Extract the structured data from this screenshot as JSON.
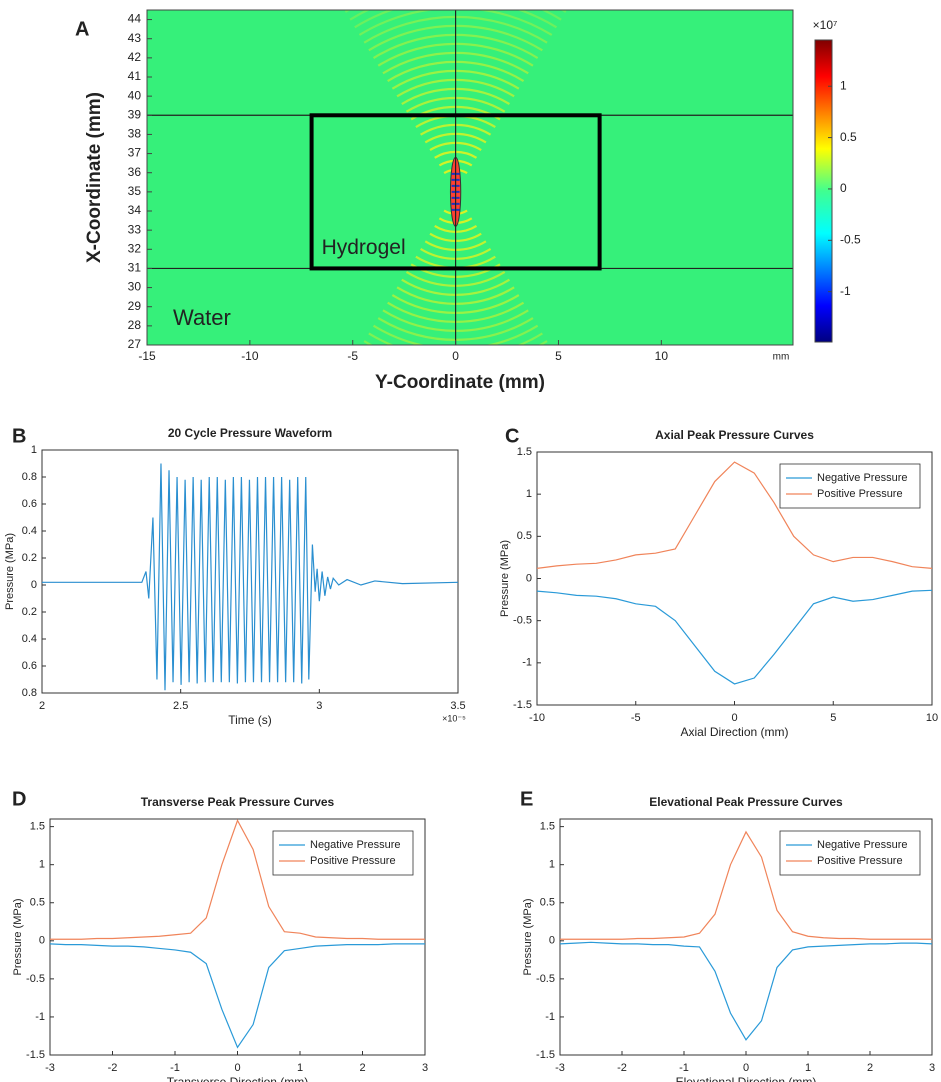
{
  "chart_data": [
    {
      "type": "field",
      "panel": "A",
      "xlabel": "Y-Coordinate (mm)",
      "ylabel": "X-Coordinate (mm)",
      "x_unit": "mm",
      "xlim": [
        -15,
        16.4
      ],
      "ylim": [
        27,
        44.5
      ],
      "xticks": [
        -15,
        -10,
        -5,
        0,
        5,
        10
      ],
      "yticks": [
        27,
        28,
        29,
        30,
        31,
        32,
        33,
        34,
        35,
        36,
        37,
        38,
        39,
        40,
        41,
        42,
        43,
        44
      ],
      "background": "#36f07a",
      "lines": {
        "y": [
          31,
          39
        ],
        "x": [
          0
        ]
      },
      "regions": [
        {
          "name": "Hydrogel",
          "x": [
            -7,
            7
          ],
          "y": [
            31,
            39
          ]
        }
      ],
      "focus": {
        "x": 0,
        "y": 35,
        "rx": 0.25,
        "ry": 1.8
      },
      "annotations": [
        "Water"
      ],
      "colorbar": {
        "label": "×10⁷",
        "clim": [
          -1.49,
          1.45
        ],
        "ticks": [
          -1,
          -0.5,
          0,
          0.5,
          1
        ]
      }
    },
    {
      "type": "line",
      "panel": "B",
      "title": "20 Cycle Pressure Waveform",
      "xlabel": "Time (s)",
      "ylabel": "Pressure (MPa)",
      "x_exponent": "×10⁻⁵",
      "xlim": [
        2,
        3.5
      ],
      "ylim": [
        -0.8,
        1
      ],
      "xticks": [
        2,
        2.5,
        3,
        3.5
      ],
      "yticks": [
        {
          "value": -0.8,
          "label": "0.8"
        },
        {
          "value": -0.6,
          "label": "0.6"
        },
        {
          "value": -0.4,
          "label": "0.4"
        },
        {
          "value": -0.2,
          "label": "0.2"
        },
        0,
        0.2,
        0.4,
        0.6,
        0.8,
        1
      ],
      "color": "#2a8fd0",
      "x": [
        2,
        2.36,
        2.375,
        2.385,
        2.4,
        2.4145,
        2.429,
        2.4435,
        2.458,
        2.4725,
        2.487,
        2.5015,
        2.516,
        2.5305,
        2.545,
        2.5595,
        2.574,
        2.5885,
        2.603,
        2.6175,
        2.632,
        2.6465,
        2.661,
        2.6755,
        2.69,
        2.7045,
        2.719,
        2.7335,
        2.748,
        2.7625,
        2.777,
        2.7915,
        2.806,
        2.8205,
        2.835,
        2.8495,
        2.864,
        2.8785,
        2.893,
        2.9075,
        2.922,
        2.9365,
        2.951,
        2.962,
        2.975,
        2.985,
        2.992,
        3.0,
        3.01,
        3.02,
        3.03,
        3.04,
        3.05,
        3.07,
        3.1,
        3.15,
        3.2,
        3.3,
        3.5
      ],
      "values": [
        0.02,
        0.02,
        0.1,
        -0.1,
        0.5,
        -0.7,
        0.9,
        -0.78,
        0.85,
        -0.72,
        0.8,
        -0.74,
        0.78,
        -0.72,
        0.8,
        -0.73,
        0.78,
        -0.72,
        0.8,
        -0.72,
        0.8,
        -0.72,
        0.78,
        -0.72,
        0.8,
        -0.73,
        0.8,
        -0.72,
        0.78,
        -0.72,
        0.8,
        -0.72,
        0.8,
        -0.72,
        0.8,
        -0.72,
        0.8,
        -0.72,
        0.78,
        -0.72,
        0.8,
        -0.73,
        0.8,
        -0.7,
        0.3,
        -0.05,
        0.12,
        -0.12,
        0.1,
        -0.08,
        0.06,
        -0.03,
        0.05,
        0,
        0.04,
        0,
        0.03,
        0.01,
        0.02
      ]
    },
    {
      "type": "line",
      "panel": "C",
      "title": "Axial Peak Pressure Curves",
      "xlabel": "Axial Direction (mm)",
      "ylabel": "Pressure (MPa)",
      "legend": "upper right",
      "xlim": [
        -10,
        10
      ],
      "ylim": [
        -1.5,
        1.5
      ],
      "xticks": [
        -10,
        -5,
        0,
        5,
        10
      ],
      "yticks": [
        -1.5,
        -1,
        -0.5,
        0,
        0.5,
        1,
        1.5
      ],
      "x": [
        -10,
        -9,
        -8,
        -7,
        -6,
        -5,
        -4,
        -3,
        -2,
        -1,
        0,
        1,
        2,
        3,
        4,
        5,
        6,
        7,
        8,
        9,
        10
      ],
      "series": [
        {
          "name": "Negative Pressure",
          "color": "#2a9ad8",
          "values": [
            -0.15,
            -0.17,
            -0.2,
            -0.21,
            -0.24,
            -0.3,
            -0.33,
            -0.5,
            -0.8,
            -1.1,
            -1.25,
            -1.18,
            -0.9,
            -0.6,
            -0.3,
            -0.22,
            -0.27,
            -0.25,
            -0.2,
            -0.15,
            -0.14
          ]
        },
        {
          "name": "Positive Pressure",
          "color": "#f0845a",
          "values": [
            0.12,
            0.15,
            0.17,
            0.18,
            0.22,
            0.28,
            0.3,
            0.35,
            0.75,
            1.15,
            1.38,
            1.25,
            0.9,
            0.5,
            0.28,
            0.2,
            0.25,
            0.25,
            0.2,
            0.14,
            0.12
          ]
        }
      ]
    },
    {
      "type": "line",
      "panel": "D",
      "title": "Transverse Peak Pressure Curves",
      "xlabel": "Transverse Direction (mm)",
      "ylabel": "Pressure (MPa)",
      "legend": "upper right",
      "xlim": [
        -3,
        3
      ],
      "ylim": [
        -1.5,
        1.6
      ],
      "xticks": [
        -3,
        -2,
        -1,
        0,
        1,
        2,
        3
      ],
      "yticks": [
        -1.5,
        -1,
        -0.5,
        0,
        0.5,
        1,
        1.5
      ],
      "x": [
        -3,
        -2.75,
        -2.5,
        -2.25,
        -2,
        -1.75,
        -1.5,
        -1.25,
        -1,
        -0.75,
        -0.5,
        -0.25,
        0,
        0.25,
        0.5,
        0.75,
        1,
        1.25,
        1.5,
        1.75,
        2,
        2.25,
        2.5,
        2.75,
        3
      ],
      "series": [
        {
          "name": "Negative Pressure",
          "color": "#2a9ad8",
          "values": [
            -0.04,
            -0.05,
            -0.05,
            -0.06,
            -0.07,
            -0.07,
            -0.08,
            -0.1,
            -0.12,
            -0.15,
            -0.3,
            -0.9,
            -1.4,
            -1.1,
            -0.35,
            -0.13,
            -0.1,
            -0.07,
            -0.06,
            -0.05,
            -0.05,
            -0.05,
            -0.04,
            -0.04,
            -0.04
          ]
        },
        {
          "name": "Positive Pressure",
          "color": "#f0845a",
          "values": [
            0.02,
            0.02,
            0.02,
            0.03,
            0.03,
            0.04,
            0.05,
            0.06,
            0.08,
            0.1,
            0.3,
            1.0,
            1.58,
            1.2,
            0.45,
            0.12,
            0.1,
            0.05,
            0.04,
            0.03,
            0.03,
            0.02,
            0.02,
            0.02,
            0.02
          ]
        }
      ]
    },
    {
      "type": "line",
      "panel": "E",
      "title": "Elevational Peak Pressure Curves",
      "xlabel": "Elevational Direction (mm)",
      "ylabel": "Pressure (MPa)",
      "legend": "upper right",
      "xlim": [
        -3,
        3
      ],
      "ylim": [
        -1.5,
        1.6
      ],
      "xticks": [
        -3,
        -2,
        -1,
        0,
        1,
        2,
        3
      ],
      "yticks": [
        -1.5,
        -1,
        -0.5,
        0,
        0.5,
        1,
        1.5
      ],
      "x": [
        -3,
        -2.75,
        -2.5,
        -2.25,
        -2,
        -1.75,
        -1.5,
        -1.25,
        -1,
        -0.75,
        -0.5,
        -0.25,
        0,
        0.25,
        0.5,
        0.75,
        1,
        1.25,
        1.5,
        1.75,
        2,
        2.25,
        2.5,
        2.75,
        3
      ],
      "series": [
        {
          "name": "Negative Pressure",
          "color": "#2a9ad8",
          "values": [
            -0.04,
            -0.03,
            -0.02,
            -0.03,
            -0.04,
            -0.04,
            -0.05,
            -0.05,
            -0.07,
            -0.08,
            -0.4,
            -0.95,
            -1.3,
            -1.05,
            -0.35,
            -0.12,
            -0.08,
            -0.07,
            -0.06,
            -0.05,
            -0.04,
            -0.04,
            -0.03,
            -0.03,
            -0.04
          ]
        },
        {
          "name": "Positive Pressure",
          "color": "#f0845a",
          "values": [
            0.02,
            0.02,
            0.02,
            0.02,
            0.02,
            0.03,
            0.03,
            0.04,
            0.05,
            0.1,
            0.35,
            1.0,
            1.43,
            1.1,
            0.4,
            0.12,
            0.06,
            0.04,
            0.03,
            0.03,
            0.02,
            0.02,
            0.02,
            0.02,
            0.02
          ]
        }
      ]
    }
  ]
}
